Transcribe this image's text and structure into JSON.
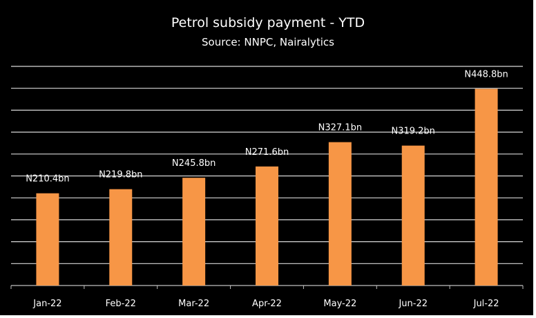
{
  "chart_data": {
    "type": "bar",
    "title": "Petrol subsidy payment - YTD",
    "subtitle": "Source: NNPC, Nairalytics",
    "categories": [
      "Jan-22",
      "Feb-22",
      "Mar-22",
      "Apr-22",
      "May-22",
      "Jun-22",
      "Jul-22"
    ],
    "values": [
      210.4,
      219.8,
      245.8,
      271.6,
      327.1,
      319.2,
      448.8
    ],
    "data_labels": [
      "N210.4bn",
      "N219.8bn",
      "N245.8bn",
      "N271.6bn",
      "N327.1bn",
      "N319.2bn",
      "N448.8bn"
    ],
    "xlabel": "",
    "ylabel": "",
    "unit": "N bn",
    "ylim": [
      0,
      500
    ],
    "grid_step": 50,
    "grid": true,
    "legend": "none",
    "colors": {
      "bar": "#F79646",
      "background": "#000000",
      "grid": "#D9D9D9",
      "text": "#FFFFFF"
    }
  }
}
